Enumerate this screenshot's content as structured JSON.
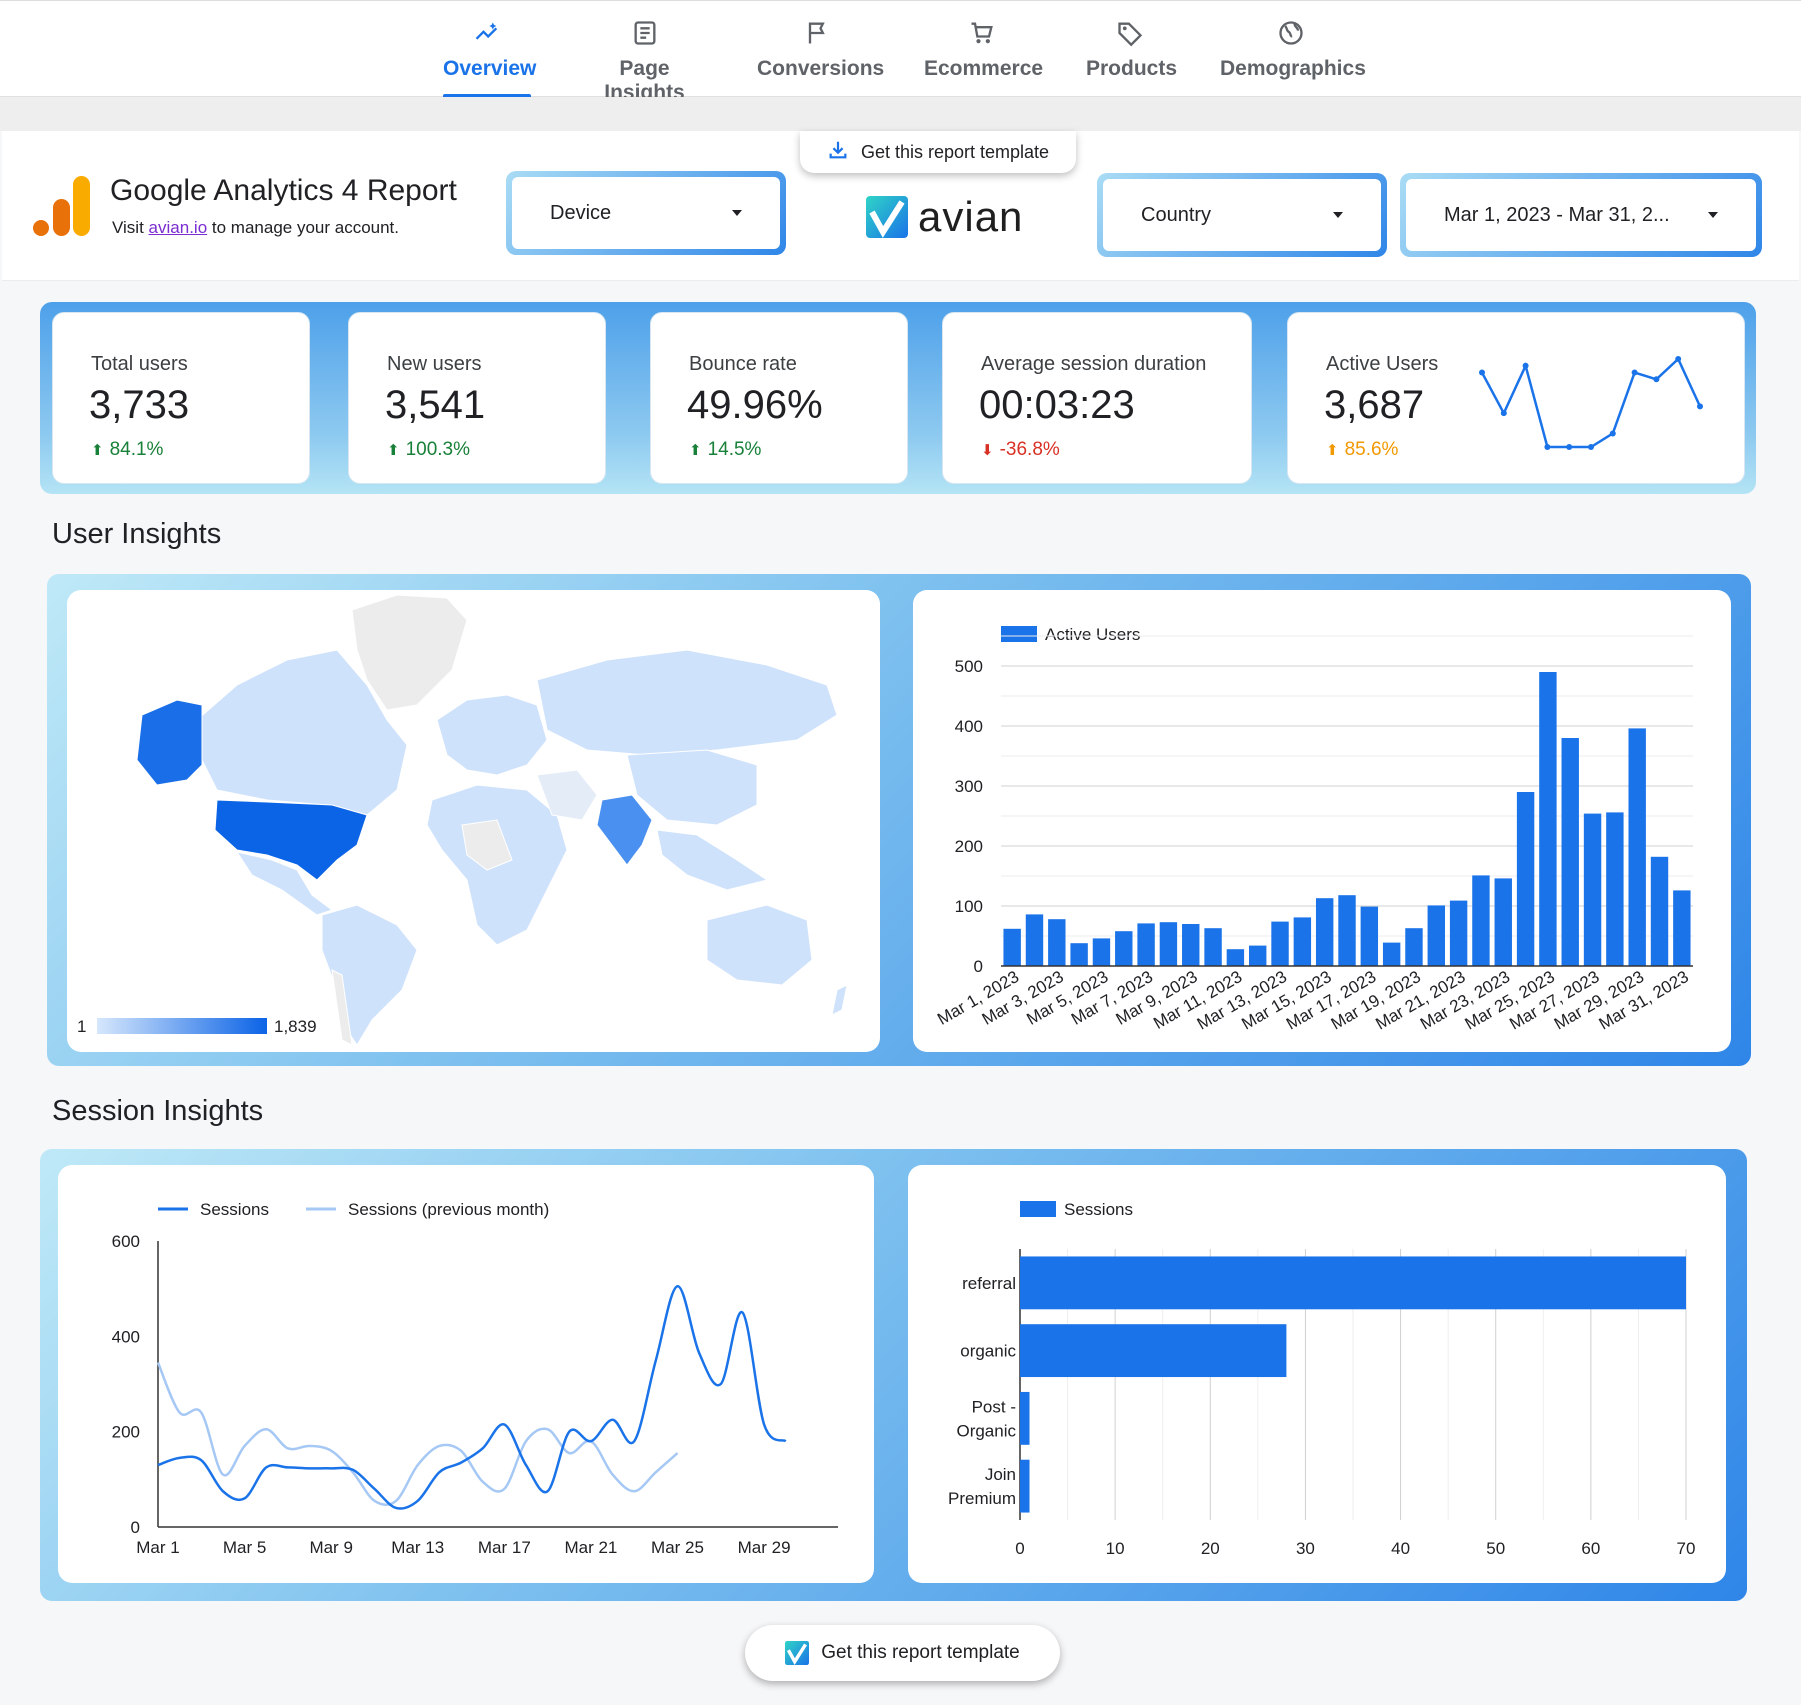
{
  "nav": {
    "tabs": [
      {
        "label": "Overview",
        "icon": "insights-icon",
        "active": true
      },
      {
        "label": "Page Insights",
        "icon": "article-icon",
        "active": false
      },
      {
        "label": "Conversions",
        "icon": "flag-icon",
        "active": false
      },
      {
        "label": "Ecommerce",
        "icon": "cart-icon",
        "active": false
      },
      {
        "label": "Products",
        "icon": "tag-icon",
        "active": false
      },
      {
        "label": "Demographics",
        "icon": "globe-icon",
        "active": false
      }
    ]
  },
  "header": {
    "template_button": "Get this report template",
    "title": "Google Analytics 4 Report",
    "sub_prefix": "Visit",
    "sub_link": "avian.io",
    "sub_suffix": "to manage your account.",
    "brand": "avian",
    "device_filter": "Device",
    "country_filter": "Country",
    "date_filter": "Mar 1, 2023 - Mar 31, 2..."
  },
  "kpis": [
    {
      "label": "Total users",
      "value": "3,733",
      "change": "84.1%",
      "direction": "up"
    },
    {
      "label": "New users",
      "value": "3,541",
      "change": "100.3%",
      "direction": "up"
    },
    {
      "label": "Bounce rate",
      "value": "49.96%",
      "change": "14.5%",
      "direction": "up"
    },
    {
      "label": "Average session duration",
      "value": "00:03:23",
      "change": "-36.8%",
      "direction": "down"
    },
    {
      "label": "Active Users",
      "value": "3,687",
      "change": "85.6%",
      "direction": "up-warning"
    }
  ],
  "sparkline": [
    16,
    10,
    17,
    5,
    5,
    5,
    7,
    16,
    15,
    18,
    11
  ],
  "user_insights": {
    "title": "User Insights",
    "map_legend_min": "1",
    "map_legend_max": "1,839"
  },
  "session_insights": {
    "title": "Session Insights"
  },
  "bottom_button": "Get this report template",
  "colors": {
    "accent": "#1a73e8",
    "bar": "#1a73e8",
    "prev": "#a6c8f5",
    "up": "#188038",
    "down": "#d93025",
    "warning": "#f29900"
  },
  "chart_data": [
    {
      "type": "bar",
      "series_name": "Active Users",
      "categories": [
        "Mar 1, 2023",
        "Mar 2, 2023",
        "Mar 3, 2023",
        "Mar 4, 2023",
        "Mar 5, 2023",
        "Mar 6, 2023",
        "Mar 7, 2023",
        "Mar 8, 2023",
        "Mar 9, 2023",
        "Mar 10, 2023",
        "Mar 11, 2023",
        "Mar 12, 2023",
        "Mar 13, 2023",
        "Mar 14, 2023",
        "Mar 15, 2023",
        "Mar 16, 2023",
        "Mar 17, 2023",
        "Mar 18, 2023",
        "Mar 19, 2023",
        "Mar 20, 2023",
        "Mar 21, 2023",
        "Mar 22, 2023",
        "Mar 23, 2023",
        "Mar 24, 2023",
        "Mar 25, 2023",
        "Mar 26, 2023",
        "Mar 27, 2023",
        "Mar 28, 2023",
        "Mar 29, 2023",
        "Mar 30, 2023",
        "Mar 31, 2023"
      ],
      "tick_labels": [
        "Mar 1, 2023",
        "Mar 3, 2023",
        "Mar 5, 2023",
        "Mar 7, 2023",
        "Mar 9, 2023",
        "Mar 11, 2023",
        "Mar 13, 2023",
        "Mar 15, 2023",
        "Mar 17, 2023",
        "Mar 19, 2023",
        "Mar 21, 2023",
        "Mar 23, 2023",
        "Mar 25, 2023",
        "Mar 27, 2023",
        "Mar 29, 2023",
        "Mar 31, 2023"
      ],
      "values": [
        62,
        86,
        78,
        38,
        46,
        58,
        71,
        73,
        70,
        63,
        28,
        34,
        74,
        81,
        113,
        118,
        99,
        39,
        63,
        101,
        109,
        151,
        146,
        290,
        490,
        380,
        254,
        256,
        396,
        182,
        126
      ],
      "yticks": [
        0,
        100,
        200,
        300,
        400,
        500
      ],
      "ylim": [
        0,
        500
      ]
    },
    {
      "type": "line",
      "series": [
        {
          "name": "Sessions",
          "values": [
            130,
            145,
            140,
            75,
            60,
            125,
            125,
            123,
            123,
            120,
            80,
            40,
            55,
            115,
            135,
            165,
            215,
            130,
            75,
            200,
            180,
            225,
            180,
            350,
            505,
            365,
            300,
            450,
            215,
            180
          ]
        },
        {
          "name": "Sessions (previous month)",
          "values": [
            345,
            240,
            240,
            110,
            170,
            205,
            165,
            170,
            160,
            115,
            55,
            55,
            130,
            170,
            160,
            95,
            80,
            180,
            205,
            155,
            180,
            110,
            75,
            115,
            155
          ]
        }
      ],
      "tick_labels": [
        "Mar 1",
        "Mar 5",
        "Mar 9",
        "Mar 13",
        "Mar 17",
        "Mar 21",
        "Mar 25",
        "Mar 29"
      ],
      "yticks": [
        0,
        200,
        400,
        600
      ],
      "ylim": [
        0,
        600
      ]
    },
    {
      "type": "bar",
      "orientation": "horizontal",
      "series_name": "Sessions",
      "categories": [
        [
          "referral"
        ],
        [
          "organic"
        ],
        [
          "Post -",
          "Organic"
        ],
        [
          "Join",
          "Premium"
        ]
      ],
      "values": [
        70,
        28,
        1,
        1
      ],
      "xticks": [
        0,
        10,
        20,
        30,
        40,
        50,
        60,
        70
      ],
      "xlim": [
        0,
        70
      ]
    }
  ]
}
